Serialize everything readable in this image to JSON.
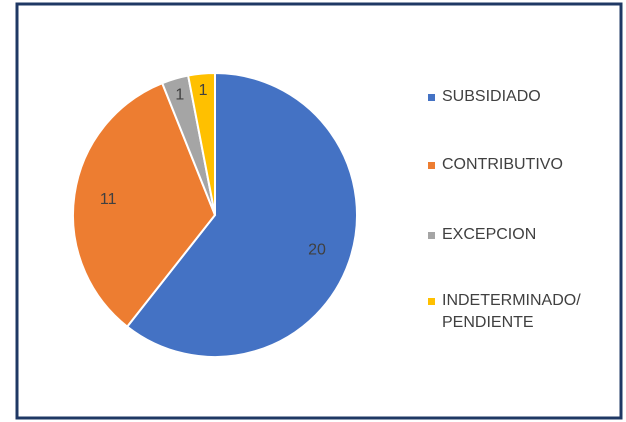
{
  "chart_data": {
    "type": "pie",
    "categories": [
      "SUBSIDIADO",
      "CONTRIBUTIVO",
      "EXCEPCION",
      "INDETERMINADO/ PENDIENTE"
    ],
    "values": [
      20,
      11,
      1,
      1
    ],
    "colors": [
      "#4472c4",
      "#ed7d31",
      "#a5a5a5",
      "#ffc000"
    ],
    "legend": "right"
  }
}
